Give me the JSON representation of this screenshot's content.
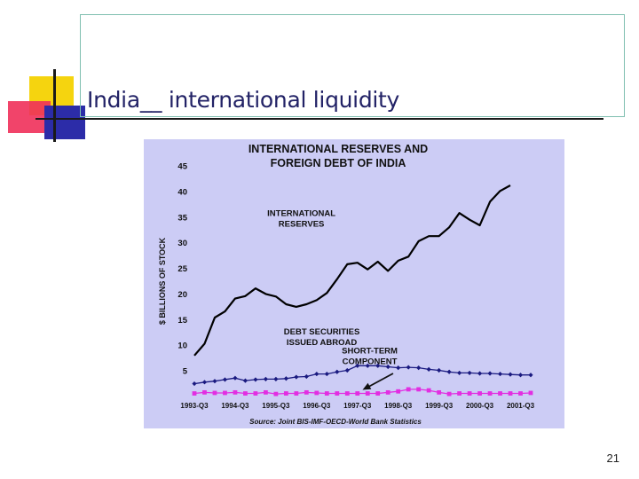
{
  "slide": {
    "title": "India__ international liquidity",
    "page_number": "21"
  },
  "chart_data": {
    "type": "line",
    "title_line1": "INTERNATIONAL RESERVES AND",
    "title_line2": "FOREIGN DEBT OF INDIA",
    "ylabel": "$ BILLIONS OF STOCK",
    "xlabel": "",
    "ylim": [
      0,
      45
    ],
    "yticks": [
      5,
      10,
      15,
      20,
      25,
      30,
      35,
      40,
      45
    ],
    "xlim": [
      0,
      33
    ],
    "xtick_labels": [
      {
        "i": 0,
        "label": "1993-Q3"
      },
      {
        "i": 4,
        "label": "1994-Q3"
      },
      {
        "i": 8,
        "label": "1995-Q3"
      },
      {
        "i": 12,
        "label": "1996-Q3"
      },
      {
        "i": 16,
        "label": "1997-Q3"
      },
      {
        "i": 20,
        "label": "1998-Q3"
      },
      {
        "i": 24,
        "label": "1999-Q3"
      },
      {
        "i": 28,
        "label": "2000-Q3"
      },
      {
        "i": 32,
        "label": "2001-Q3"
      }
    ],
    "source": "Source: Joint BIS-IMF-OECD-World Bank Statistics",
    "grid": false,
    "background": "#ccccf5",
    "series": [
      {
        "name": "INTERNATIONAL RESERVES",
        "color": "#000000",
        "marker": "none",
        "x": [
          0,
          1,
          2,
          3,
          4,
          5,
          6,
          7,
          8,
          9,
          10,
          11,
          12,
          13,
          14,
          15,
          16,
          17,
          18,
          19,
          20,
          21,
          22,
          23,
          24,
          25,
          26,
          27,
          28,
          29,
          30,
          31
        ],
        "values": [
          8.0,
          10.3,
          15.4,
          16.6,
          19.1,
          19.6,
          21.1,
          20.0,
          19.5,
          18.0,
          17.5,
          18.0,
          18.8,
          20.2,
          22.9,
          25.8,
          26.1,
          24.8,
          26.3,
          24.5,
          26.5,
          27.3,
          30.3,
          31.3,
          31.3,
          33.0,
          35.8,
          34.5,
          33.4,
          38.0,
          40.1,
          41.2
        ]
      },
      {
        "name": "DEBT SECURITIES ISSUED ABROAD",
        "color": "#1a1a80",
        "marker": "diamond",
        "x": [
          0,
          1,
          2,
          3,
          4,
          5,
          6,
          7,
          8,
          9,
          10,
          11,
          12,
          13,
          14,
          15,
          16,
          17,
          18,
          19,
          20,
          21,
          22,
          23,
          24,
          25,
          26,
          27,
          28,
          29,
          30,
          31,
          32,
          33
        ],
        "values": [
          2.5,
          2.8,
          3.0,
          3.3,
          3.6,
          3.1,
          3.3,
          3.4,
          3.4,
          3.5,
          3.8,
          3.9,
          4.4,
          4.4,
          4.8,
          5.1,
          6.0,
          6.0,
          6.0,
          5.8,
          5.6,
          5.7,
          5.6,
          5.3,
          5.1,
          4.8,
          4.6,
          4.6,
          4.5,
          4.5,
          4.4,
          4.3,
          4.2,
          4.2
        ]
      },
      {
        "name": "SHORT-TERM COMPONENT",
        "color": "#e22ee2",
        "marker": "square",
        "x": [
          0,
          1,
          2,
          3,
          4,
          5,
          6,
          7,
          8,
          9,
          10,
          11,
          12,
          13,
          14,
          15,
          16,
          17,
          18,
          19,
          20,
          21,
          22,
          23,
          24,
          25,
          26,
          27,
          28,
          29,
          30,
          31,
          32,
          33
        ],
        "values": [
          0.6,
          0.8,
          0.7,
          0.7,
          0.8,
          0.6,
          0.6,
          0.8,
          0.5,
          0.6,
          0.6,
          0.8,
          0.7,
          0.6,
          0.6,
          0.6,
          0.6,
          0.6,
          0.6,
          0.8,
          1.0,
          1.4,
          1.4,
          1.2,
          0.8,
          0.5,
          0.6,
          0.6,
          0.6,
          0.6,
          0.6,
          0.6,
          0.6,
          0.7
        ]
      }
    ],
    "annotations": [
      {
        "lines": [
          "INTERNATIONAL",
          "RESERVES"
        ],
        "x": 10.5,
        "y": 35.2
      },
      {
        "lines": [
          "DEBT SECURITIES",
          "ISSUED ABROAD"
        ],
        "x": 12.5,
        "y": 12.1
      },
      {
        "lines": [
          "SHORT-TERM",
          "COMPONENT"
        ],
        "x": 17.2,
        "y": 8.4
      }
    ]
  }
}
